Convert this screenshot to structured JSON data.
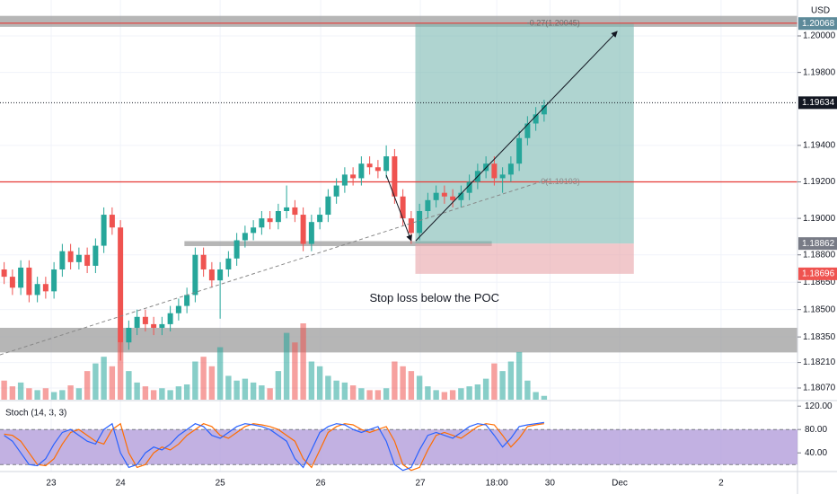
{
  "chart_data": {
    "type": "candlestick",
    "currency": "USD",
    "up_color": "#26a69a",
    "down_color": "#ef5350",
    "xlim": [
      -0.5,
      95.5
    ],
    "xticks": [
      {
        "value": 5.66,
        "label": "23"
      },
      {
        "value": 14.0,
        "label": "24"
      },
      {
        "value": 26.0,
        "label": "25"
      },
      {
        "value": 38.1,
        "label": "26"
      },
      {
        "value": 50.1,
        "label": "27"
      },
      {
        "value": 59.3,
        "label": "18:00"
      },
      {
        "value": 65.7,
        "label": "30"
      },
      {
        "value": 74.1,
        "label": "Dec"
      },
      {
        "value": 86.3,
        "label": "2"
      }
    ],
    "ylim": [
      1.18006,
      1.20197
    ],
    "yticks": [
      {
        "value": 1.2,
        "label": "1.20000"
      },
      {
        "value": 1.198,
        "label": "1.19800"
      },
      {
        "value": 1.194,
        "label": "1.19400"
      },
      {
        "value": 1.192,
        "label": "1.19200"
      },
      {
        "value": 1.19,
        "label": "1.19000"
      },
      {
        "value": 1.188,
        "label": "1.18800"
      },
      {
        "value": 1.1865,
        "label": "1.18650"
      },
      {
        "value": 1.185,
        "label": "1.18500"
      },
      {
        "value": 1.1835,
        "label": "1.18350"
      },
      {
        "value": 1.1821,
        "label": "1.18210"
      },
      {
        "value": 1.1807,
        "label": "1.18070"
      }
    ],
    "open": [
      1.1872,
      1.1868,
      1.1862,
      1.1873,
      1.1858,
      1.1864,
      1.186,
      1.1872,
      1.1882,
      1.1876,
      1.188,
      1.1874,
      1.1885,
      1.1902,
      1.1895,
      1.1832,
      1.184,
      1.1846,
      1.1842,
      1.184,
      1.1842,
      1.1848,
      1.1852,
      1.1858,
      1.188,
      1.1872,
      1.1866,
      1.1872,
      1.1878,
      1.1888,
      1.1892,
      1.1895,
      1.19,
      1.1898,
      1.1904,
      1.1906,
      1.1902,
      1.1886,
      1.1898,
      1.1902,
      1.1912,
      1.1918,
      1.1924,
      1.1922,
      1.193,
      1.1928,
      1.1926,
      1.1934,
      1.1912,
      1.19,
      1.1892,
      1.1904,
      1.191,
      1.1914,
      1.1912,
      1.191,
      1.1914,
      1.192,
      1.1926,
      1.193,
      1.1922,
      1.1924,
      1.193,
      1.1944,
      1.1952,
      1.1957
    ],
    "high": [
      1.1876,
      1.1872,
      1.1877,
      1.1877,
      1.1868,
      1.1868,
      1.1876,
      1.1886,
      1.1886,
      1.1884,
      1.1884,
      1.1889,
      1.1906,
      1.1906,
      1.1899,
      1.1844,
      1.185,
      1.185,
      1.1846,
      1.1846,
      1.1852,
      1.1856,
      1.1862,
      1.1884,
      1.1884,
      1.1876,
      1.1876,
      1.1882,
      1.1892,
      1.1896,
      1.1899,
      1.1904,
      1.1904,
      1.1908,
      1.1918,
      1.191,
      1.1906,
      1.1902,
      1.1906,
      1.1916,
      1.1922,
      1.1928,
      1.1928,
      1.1934,
      1.1934,
      1.1932,
      1.194,
      1.1938,
      1.1916,
      1.1904,
      1.1908,
      1.1914,
      1.1918,
      1.1918,
      1.1916,
      1.1918,
      1.1924,
      1.193,
      1.1934,
      1.1934,
      1.1928,
      1.1934,
      1.1948,
      1.1956,
      1.1961,
      1.1965
    ],
    "low": [
      1.1864,
      1.1858,
      1.1858,
      1.1854,
      1.1854,
      1.1856,
      1.1856,
      1.1868,
      1.1872,
      1.1872,
      1.187,
      1.187,
      1.1881,
      1.1891,
      1.1822,
      1.1828,
      1.1836,
      1.1838,
      1.1836,
      1.1836,
      1.1838,
      1.1844,
      1.1848,
      1.1854,
      1.1868,
      1.1862,
      1.1845,
      1.1868,
      1.1874,
      1.1884,
      1.1888,
      1.1891,
      1.1894,
      1.1894,
      1.19,
      1.1898,
      1.1882,
      1.1882,
      1.1894,
      1.1898,
      1.1908,
      1.1914,
      1.1918,
      1.1918,
      1.1924,
      1.1922,
      1.1922,
      1.1908,
      1.1896,
      1.1886,
      1.1888,
      1.19,
      1.1906,
      1.1908,
      1.1906,
      1.1906,
      1.191,
      1.1916,
      1.1922,
      1.1918,
      1.1914,
      1.192,
      1.1926,
      1.194,
      1.1948,
      1.1953
    ],
    "close": [
      1.1868,
      1.1862,
      1.1873,
      1.1858,
      1.1864,
      1.186,
      1.1872,
      1.1882,
      1.1876,
      1.188,
      1.1874,
      1.1885,
      1.1902,
      1.1895,
      1.1832,
      1.184,
      1.1846,
      1.1842,
      1.184,
      1.1842,
      1.1848,
      1.1852,
      1.1858,
      1.188,
      1.1872,
      1.1866,
      1.1872,
      1.1878,
      1.1888,
      1.1892,
      1.1895,
      1.19,
      1.1898,
      1.1904,
      1.1906,
      1.1902,
      1.1886,
      1.1898,
      1.1902,
      1.1912,
      1.1918,
      1.1924,
      1.1922,
      1.193,
      1.1928,
      1.1926,
      1.1934,
      1.1912,
      1.19,
      1.1892,
      1.1904,
      1.191,
      1.1914,
      1.1912,
      1.191,
      1.1914,
      1.192,
      1.1926,
      1.193,
      1.1922,
      1.1924,
      1.193,
      1.1944,
      1.1952,
      1.1957,
      1.1962
    ],
    "volume": [
      20,
      14,
      18,
      12,
      10,
      12,
      8,
      10,
      15,
      12,
      30,
      38,
      45,
      35,
      60,
      30,
      18,
      14,
      10,
      12,
      10,
      14,
      16,
      40,
      45,
      35,
      55,
      25,
      20,
      22,
      18,
      15,
      12,
      30,
      70,
      60,
      80,
      40,
      35,
      25,
      20,
      18,
      15,
      12,
      10,
      10,
      12,
      40,
      35,
      30,
      25,
      14,
      10,
      8,
      10,
      12,
      14,
      16,
      22,
      38,
      30,
      40,
      50,
      20,
      8,
      4
    ],
    "price_labels": [
      {
        "price": 1.20068,
        "color": "#5d8a9a"
      },
      {
        "price": 1.19634,
        "color": "#131722"
      },
      {
        "price": 1.18862,
        "color": "#787b86"
      },
      {
        "price": 1.18696,
        "color": "#ef5350"
      }
    ],
    "hlines": [
      {
        "price": 1.2007,
        "color": "#e53935"
      },
      {
        "price": 1.192,
        "color": "#e53935"
      }
    ],
    "zones": [
      {
        "from": 1.2005,
        "to": 1.2011
      },
      {
        "from": 1.18265,
        "to": 1.184
      },
      {
        "from": 1.18848,
        "to": 1.18875,
        "start": 21.7,
        "end": 58.7
      }
    ],
    "position": {
      "start": 49.5,
      "end": 75.8,
      "entry": 1.18862,
      "target": 1.20068,
      "stop": 1.18696,
      "target_label": "-0.27(1.20045)",
      "entry_label": "0(1.19193)"
    },
    "lines": [
      {
        "from": [
          -0.5,
          1.18252
        ],
        "to": [
          65.4,
          1.19212
        ],
        "dashed": true,
        "arrow": false
      },
      {
        "from": [
          49.55,
          1.18877
        ],
        "to": [
          73.8,
          1.20025
        ],
        "dashed": false,
        "arrow": true
      },
      {
        "from": [
          46,
          1.19237
        ],
        "to": [
          49,
          1.18877
        ],
        "dashed": false,
        "arrow": true
      }
    ],
    "annotation": {
      "text": "Stop loss below the POC",
      "bar": 51.8,
      "price": 1.1856
    },
    "stoch": {
      "title": "Stoch (14, 3, 3)",
      "ylim": [
        8,
        128
      ],
      "yticks": [
        {
          "value": 120,
          "label": "120.00"
        },
        {
          "value": 80,
          "label": "80.00"
        },
        {
          "value": 40,
          "label": "40.00"
        }
      ],
      "band": [
        20,
        80
      ],
      "k": [
        70,
        60,
        40,
        20,
        18,
        30,
        55,
        75,
        80,
        70,
        60,
        55,
        80,
        90,
        40,
        15,
        20,
        40,
        50,
        45,
        55,
        70,
        80,
        90,
        85,
        70,
        65,
        75,
        85,
        90,
        88,
        85,
        80,
        70,
        60,
        30,
        15,
        45,
        75,
        85,
        90,
        88,
        80,
        75,
        80,
        85,
        60,
        20,
        10,
        15,
        45,
        70,
        75,
        70,
        65,
        75,
        85,
        90,
        88,
        70,
        50,
        65,
        85,
        88,
        90,
        92
      ],
      "d": [
        72,
        70,
        60,
        40,
        20,
        18,
        30,
        55,
        75,
        80,
        70,
        60,
        55,
        80,
        90,
        40,
        15,
        20,
        40,
        50,
        45,
        55,
        70,
        80,
        90,
        85,
        70,
        65,
        75,
        85,
        90,
        88,
        85,
        80,
        70,
        60,
        30,
        15,
        45,
        75,
        85,
        90,
        88,
        80,
        75,
        80,
        85,
        60,
        20,
        10,
        15,
        45,
        70,
        75,
        70,
        65,
        75,
        85,
        90,
        88,
        70,
        50,
        65,
        85,
        88,
        90
      ],
      "k_color": "#2962ff",
      "d_color": "#ff6d00"
    }
  }
}
